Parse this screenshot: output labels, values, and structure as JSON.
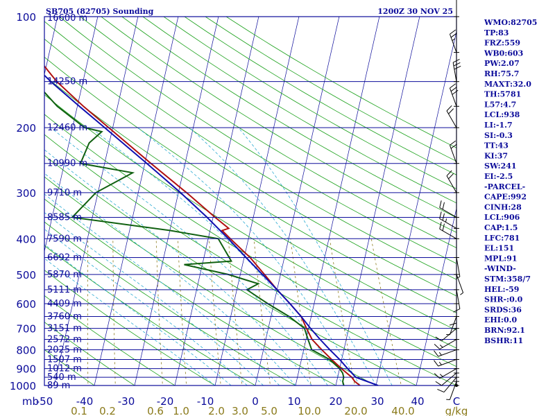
{
  "header": {
    "station": "SB705 (82705) Sounding",
    "time": "1200Z 30 NOV 25"
  },
  "indices": [
    "WMO:82705",
    "TP:83",
    "FRZ:559",
    "WB0:603",
    "PW:2.07",
    "RH:75.7",
    "MAXT:32.0",
    "TH:5781",
    "L57:4.7",
    "LCL:938",
    "LI:-1.7",
    "SI:-0.3",
    "TT:43",
    "KI:37",
    "SW:241",
    "EI:-2.5",
    "-PARCEL-",
    "CAPE:992",
    "CINH:28",
    "LCL:906",
    "CAP:1.5",
    "LFC:781",
    "EL:151",
    "MPL:91",
    "-WIND-",
    "STM:358/7",
    "HEL:-59",
    "SHR-:0.0",
    "SRDS:36",
    "EHI:0.0",
    "BRN:92.1",
    "BSHR:11"
  ],
  "colors": {
    "frame": "#0b0b9a",
    "isobar": "#0b0b9a",
    "isotherm": "#0b0b9a",
    "dry_adiabat": "#18a018",
    "moist_adiabat": "#2aaad2",
    "mixing_ratio": "#8a7a1a",
    "temperature": "#b01010",
    "dewpoint": "#106010",
    "parcel": "#1010b0",
    "wind": "#000000"
  },
  "chart_data": {
    "type": "skew-t",
    "unit_label_pressure": "mb",
    "unit_label_mixing": "g/kg",
    "pressure_levels": [
      {
        "p": 100,
        "label": "100",
        "height": "16600 m"
      },
      {
        "p": 150,
        "label": "",
        "height": "14250 m"
      },
      {
        "p": 200,
        "label": "200",
        "height": "12460 m"
      },
      {
        "p": 250,
        "label": "",
        "height": "10990 m"
      },
      {
        "p": 300,
        "label": "300",
        "height": "9710 m"
      },
      {
        "p": 350,
        "label": "",
        "height": "8585 m"
      },
      {
        "p": 400,
        "label": "400",
        "height": "7590 m"
      },
      {
        "p": 450,
        "label": "",
        "height": "6692 m"
      },
      {
        "p": 500,
        "label": "500",
        "height": "5870 m"
      },
      {
        "p": 550,
        "label": "",
        "height": "5111 m"
      },
      {
        "p": 600,
        "label": "600",
        "height": "4409 m"
      },
      {
        "p": 650,
        "label": "",
        "height": "3760 m"
      },
      {
        "p": 700,
        "label": "700",
        "height": "3151 m"
      },
      {
        "p": 750,
        "label": "",
        "height": "2572 m"
      },
      {
        "p": 800,
        "label": "800",
        "height": "2025 m"
      },
      {
        "p": 850,
        "label": "",
        "height": "1507 m"
      },
      {
        "p": 900,
        "label": "900",
        "height": "1012 m"
      },
      {
        "p": 950,
        "label": "",
        "height": "540 m"
      },
      {
        "p": 1000,
        "label": "1000",
        "height": "89 m"
      }
    ],
    "temperature_ticks": [
      "-50",
      "-40",
      "-30",
      "-20",
      "-10",
      "0",
      "10",
      "20",
      "30",
      "40",
      "C"
    ],
    "mixing_ratio_ticks": [
      "0.1",
      "0.2",
      "0.6",
      "1.0",
      "2.0",
      "3.0",
      "5.0",
      "10.0",
      "20.0",
      "40.0"
    ],
    "series": [
      {
        "name": "",
        "kind": "temperature",
        "points": [
          {
            "p": 1010,
            "t": 26.5
          },
          {
            "p": 1000,
            "t": 26.0
          },
          {
            "p": 975,
            "t": 24.5
          },
          {
            "p": 950,
            "t": 23.5
          },
          {
            "p": 925,
            "t": 22.0
          },
          {
            "p": 900,
            "t": 20.5
          },
          {
            "p": 850,
            "t": 17.5
          },
          {
            "p": 800,
            "t": 14.5
          },
          {
            "p": 750,
            "t": 11.5
          },
          {
            "p": 700,
            "t": 9.5
          },
          {
            "p": 650,
            "t": 7.5
          },
          {
            "p": 600,
            "t": 4.0
          },
          {
            "p": 550,
            "t": 0.0
          },
          {
            "p": 500,
            "t": -4.0
          },
          {
            "p": 450,
            "t": -8.5
          },
          {
            "p": 400,
            "t": -14.5
          },
          {
            "p": 380,
            "t": -17.0
          },
          {
            "p": 375,
            "t": -15.5
          },
          {
            "p": 350,
            "t": -19.5
          },
          {
            "p": 300,
            "t": -28.0
          },
          {
            "p": 250,
            "t": -38.5
          },
          {
            "p": 200,
            "t": -51.0
          },
          {
            "p": 175,
            "t": -58.5
          },
          {
            "p": 150,
            "t": -66.5
          },
          {
            "p": 125,
            "t": -74.0
          },
          {
            "p": 100,
            "t": -79.0
          }
        ]
      },
      {
        "name": "",
        "kind": "dewpoint",
        "points": [
          {
            "p": 1000,
            "t": 22.0
          },
          {
            "p": 975,
            "t": 21.5
          },
          {
            "p": 950,
            "t": 21.5
          },
          {
            "p": 925,
            "t": 21.0
          },
          {
            "p": 900,
            "t": 20.0
          },
          {
            "p": 850,
            "t": 17.0
          },
          {
            "p": 800,
            "t": 12.0
          },
          {
            "p": 750,
            "t": 10.5
          },
          {
            "p": 700,
            "t": 9.0
          },
          {
            "p": 650,
            "t": 4.5
          },
          {
            "p": 600,
            "t": -1.5
          },
          {
            "p": 550,
            "t": -7.5
          },
          {
            "p": 530,
            "t": -5.0
          },
          {
            "p": 500,
            "t": -13.0
          },
          {
            "p": 470,
            "t": -24.5
          },
          {
            "p": 460,
            "t": -13.0
          },
          {
            "p": 400,
            "t": -17.5
          },
          {
            "p": 380,
            "t": -30.0
          },
          {
            "p": 350,
            "t": -55.0
          },
          {
            "p": 300,
            "t": -50.5
          },
          {
            "p": 265,
            "t": -42.5
          },
          {
            "p": 250,
            "t": -56.0
          },
          {
            "p": 220,
            "t": -55.0
          },
          {
            "p": 205,
            "t": -52.5
          },
          {
            "p": 200,
            "t": -57.0
          },
          {
            "p": 175,
            "t": -65.0
          },
          {
            "p": 150,
            "t": -72.0
          },
          {
            "p": 125,
            "t": -80.0
          },
          {
            "p": 105,
            "t": -87.0
          },
          {
            "p": 100,
            "t": -89.0
          }
        ]
      },
      {
        "name": "",
        "kind": "parcel",
        "points": [
          {
            "p": 1000,
            "t": 30.5
          },
          {
            "p": 950,
            "t": 24.5
          },
          {
            "p": 900,
            "t": 22.0
          },
          {
            "p": 850,
            "t": 19.5
          },
          {
            "p": 800,
            "t": 16.5
          },
          {
            "p": 750,
            "t": 13.5
          },
          {
            "p": 700,
            "t": 10.5
          },
          {
            "p": 650,
            "t": 7.5
          },
          {
            "p": 600,
            "t": 4.0
          },
          {
            "p": 550,
            "t": 0.0
          },
          {
            "p": 500,
            "t": -4.5
          },
          {
            "p": 450,
            "t": -9.5
          },
          {
            "p": 400,
            "t": -15.0
          },
          {
            "p": 350,
            "t": -21.5
          },
          {
            "p": 300,
            "t": -29.5
          },
          {
            "p": 250,
            "t": -39.5
          },
          {
            "p": 200,
            "t": -52.0
          },
          {
            "p": 175,
            "t": -59.5
          },
          {
            "p": 150,
            "t": -68.0
          },
          {
            "p": 125,
            "t": -77.0
          },
          {
            "p": 110,
            "t": -83.0
          }
        ]
      }
    ],
    "wind_barbs": [
      {
        "p": 1000,
        "dir": 0,
        "spd": 0
      },
      {
        "p": 975,
        "dir": 200,
        "spd": 5
      },
      {
        "p": 950,
        "dir": 220,
        "spd": 10
      },
      {
        "p": 925,
        "dir": 230,
        "spd": 10
      },
      {
        "p": 900,
        "dir": 240,
        "spd": 15
      },
      {
        "p": 850,
        "dir": 250,
        "spd": 15
      },
      {
        "p": 800,
        "dir": 250,
        "spd": 15
      },
      {
        "p": 750,
        "dir": 240,
        "spd": 15
      },
      {
        "p": 700,
        "dir": 230,
        "spd": 10
      },
      {
        "p": 650,
        "dir": 200,
        "spd": 5
      },
      {
        "p": 600,
        "dir": 180,
        "spd": 10
      },
      {
        "p": 550,
        "dir": 170,
        "spd": 10
      },
      {
        "p": 500,
        "dir": 160,
        "spd": 5
      },
      {
        "p": 450,
        "dir": 170,
        "spd": 5
      },
      {
        "p": 400,
        "dir": 300,
        "spd": 20
      },
      {
        "p": 375,
        "dir": 300,
        "spd": 25
      },
      {
        "p": 350,
        "dir": 300,
        "spd": 20
      },
      {
        "p": 300,
        "dir": 330,
        "spd": 20
      },
      {
        "p": 250,
        "dir": 340,
        "spd": 20
      },
      {
        "p": 200,
        "dir": 330,
        "spd": 20
      },
      {
        "p": 175,
        "dir": 340,
        "spd": 30
      },
      {
        "p": 150,
        "dir": 350,
        "spd": 30
      },
      {
        "p": 125,
        "dir": 340,
        "spd": 25
      },
      {
        "p": 100,
        "dir": 0,
        "spd": 10
      }
    ]
  }
}
